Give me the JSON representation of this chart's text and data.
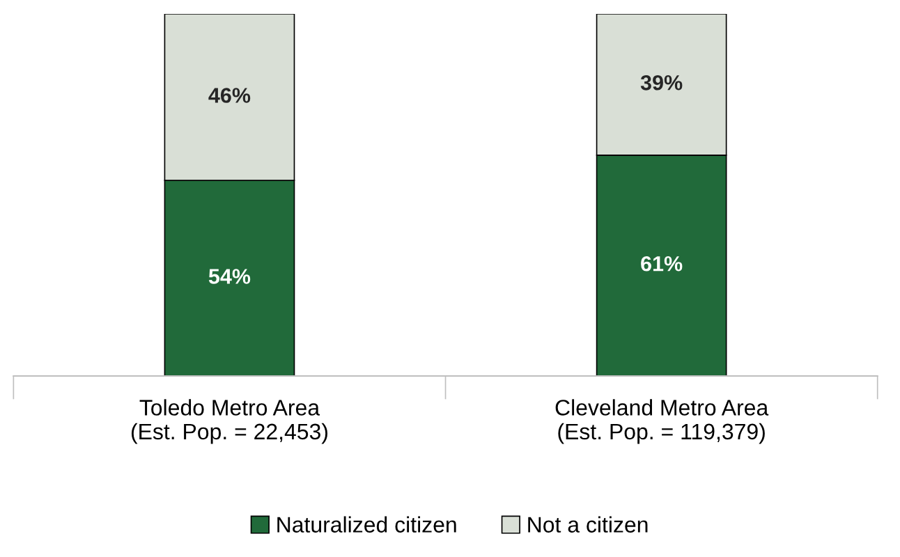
{
  "chart_data": {
    "type": "bar",
    "stacked": true,
    "legend": "bottom",
    "grid": false,
    "categories": [
      "Toledo Metro Area\n(Est. Pop. = 22,453)",
      "Cleveland Metro Area\n(Est. Pop. = 119,379)"
    ],
    "series": [
      {
        "name": "Naturalized citizen",
        "color": "#216a3a",
        "values": [
          54,
          61
        ],
        "value_labels": [
          "54%",
          "61%"
        ]
      },
      {
        "name": "Not a citizen",
        "color": "#d9dfd6",
        "values": [
          46,
          39
        ],
        "value_labels": [
          "46%",
          "39%"
        ]
      }
    ]
  }
}
